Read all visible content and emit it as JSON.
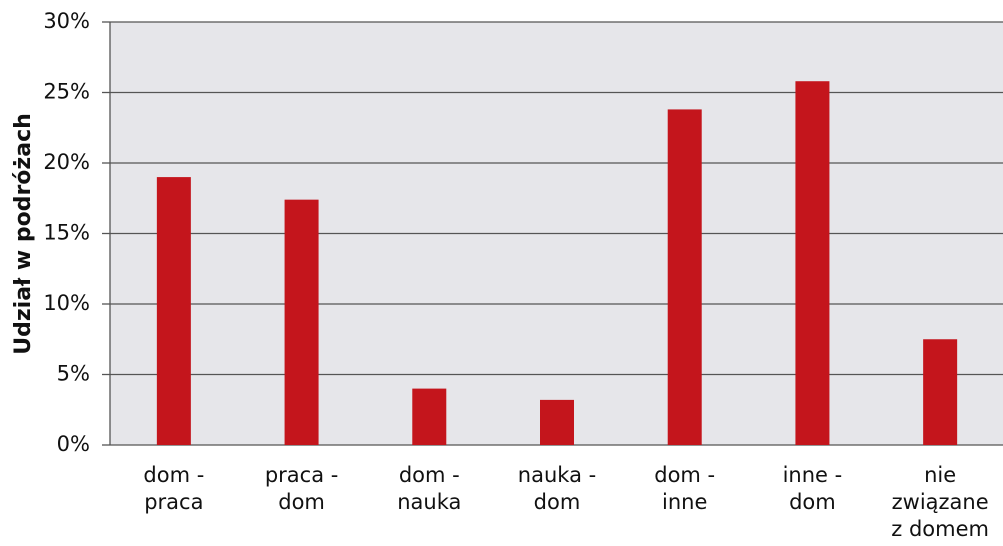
{
  "chart_data": {
    "type": "bar",
    "y_label": "Udział w podróżach",
    "categories": [
      "dom -\npraca",
      "praca -\ndom",
      "dom -\nnauka",
      "nauka -\ndom",
      "dom -\ninne",
      "inne -\ndom",
      "nie\nzwiązane\nz domem"
    ],
    "values": [
      19.0,
      17.4,
      4.0,
      3.2,
      23.8,
      25.8,
      7.5
    ],
    "color": "#c4151c",
    "ylim": [
      0,
      30
    ],
    "yticks": [
      {
        "value": 0,
        "label": "0%"
      },
      {
        "value": 5,
        "label": "5%"
      },
      {
        "value": 10,
        "label": "10%"
      },
      {
        "value": 15,
        "label": "15%"
      },
      {
        "value": 20,
        "label": "20%"
      },
      {
        "value": 25,
        "label": "25%"
      },
      {
        "value": 30,
        "label": "30%"
      }
    ],
    "grid": true
  }
}
